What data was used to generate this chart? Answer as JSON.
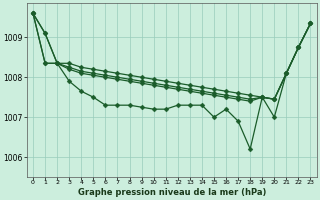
{
  "xlabel": "Graphe pression niveau de la mer (hPa)",
  "background_color": "#cceedd",
  "plot_background": "#cceedd",
  "grid_color": "#99ccbb",
  "line_color": "#1a5c2a",
  "marker_color": "#1a5c2a",
  "xlim": [
    -0.5,
    23.5
  ],
  "ylim": [
    1005.5,
    1009.85
  ],
  "yticks": [
    1006,
    1007,
    1008,
    1009
  ],
  "xticks": [
    0,
    1,
    2,
    3,
    4,
    5,
    6,
    7,
    8,
    9,
    10,
    11,
    12,
    13,
    14,
    15,
    16,
    17,
    18,
    19,
    20,
    21,
    22,
    23
  ],
  "line1": [
    1009.6,
    1009.1,
    1008.35,
    1007.9,
    1007.65,
    1007.5,
    1007.3,
    1007.3,
    1007.3,
    1007.25,
    1007.2,
    1007.2,
    1007.3,
    1007.3,
    1007.3,
    1007.0,
    1007.2,
    1006.9,
    1006.2,
    1007.5,
    1007.0,
    1008.1,
    1008.75,
    1009.35
  ],
  "line2": [
    1009.6,
    1009.1,
    1008.35,
    1008.35,
    1008.25,
    1008.2,
    1008.15,
    1008.1,
    1008.05,
    1008.0,
    1007.95,
    1007.9,
    1007.85,
    1007.8,
    1007.75,
    1007.7,
    1007.65,
    1007.6,
    1007.55,
    1007.5,
    1007.45,
    1008.1,
    1008.75,
    1009.35
  ],
  "line3": [
    1009.6,
    1008.35,
    1008.35,
    1008.2,
    1008.1,
    1008.05,
    1008.0,
    1007.95,
    1007.9,
    1007.85,
    1007.8,
    1007.75,
    1007.7,
    1007.65,
    1007.6,
    1007.55,
    1007.5,
    1007.45,
    1007.4,
    1007.5,
    1007.45,
    1008.1,
    1008.75,
    1009.35
  ],
  "line4": [
    1009.6,
    1008.35,
    1008.35,
    1008.25,
    1008.15,
    1008.1,
    1008.05,
    1008.0,
    1007.95,
    1007.9,
    1007.85,
    1007.8,
    1007.75,
    1007.7,
    1007.65,
    1007.6,
    1007.55,
    1007.5,
    1007.45,
    1007.5,
    1007.45,
    1008.1,
    1008.75,
    1009.35
  ]
}
